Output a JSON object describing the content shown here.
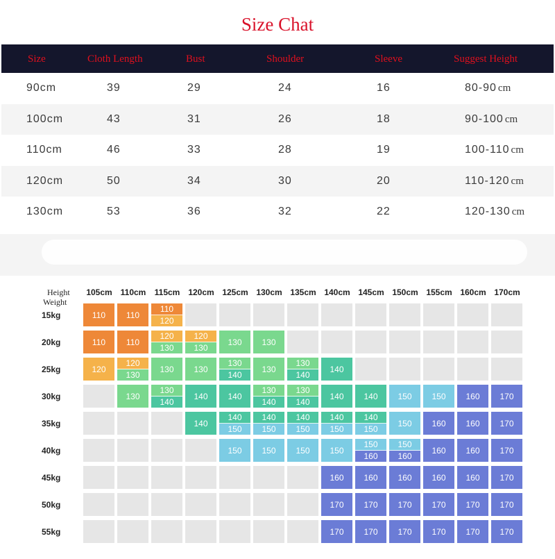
{
  "title": "Size Chat",
  "size_table": {
    "headers": [
      "Size",
      "Cloth Length",
      "Bust",
      "Shoulder",
      "Sleeve",
      "Suggest Height"
    ],
    "unit": "cm",
    "rows": [
      {
        "size": "90cm",
        "length": "39",
        "bust": "29",
        "shoulder": "24",
        "sleeve": "16",
        "height": "80-90"
      },
      {
        "size": "100cm",
        "length": "43",
        "bust": "31",
        "shoulder": "26",
        "sleeve": "18",
        "height": "90-100"
      },
      {
        "size": "110cm",
        "length": "46",
        "bust": "33",
        "shoulder": "28",
        "sleeve": "19",
        "height": "100-110"
      },
      {
        "size": "120cm",
        "length": "50",
        "bust": "34",
        "shoulder": "30",
        "sleeve": "20",
        "height": "110-120"
      },
      {
        "size": "130cm",
        "length": "53",
        "bust": "36",
        "shoulder": "32",
        "sleeve": "22",
        "height": "120-130"
      }
    ]
  },
  "grid": {
    "corner_height": "Height",
    "corner_weight": "Weight",
    "heights": [
      "105cm",
      "110cm",
      "115cm",
      "120cm",
      "125cm",
      "130cm",
      "135cm",
      "140cm",
      "145cm",
      "150cm",
      "155cm",
      "160cm",
      "170cm"
    ],
    "weights": [
      "15kg",
      "20kg",
      "25kg",
      "30kg",
      "35kg",
      "40kg",
      "45kg",
      "50kg",
      "55kg"
    ],
    "colors": {
      "110": "#ee8838",
      "120": "#f5b24a",
      "130": "#7ad88e",
      "140": "#4cc6a0",
      "150": "#7ccce4",
      "160": "#6b7cd6",
      "170": "#6b7cd6",
      "empty": "#e6e6e6"
    },
    "cells": [
      [
        [
          "110"
        ],
        [
          "110"
        ],
        [
          "110",
          "120"
        ],
        [],
        [],
        [],
        [],
        [],
        [],
        [],
        [],
        [],
        []
      ],
      [
        [
          "110"
        ],
        [
          "110"
        ],
        [
          "120",
          "130"
        ],
        [
          "120",
          "130"
        ],
        [
          "130"
        ],
        [
          "130"
        ],
        [],
        [],
        [],
        [],
        [],
        [],
        []
      ],
      [
        [
          "120"
        ],
        [
          "120",
          "130"
        ],
        [
          "130"
        ],
        [
          "130"
        ],
        [
          "130",
          "140"
        ],
        [
          "130"
        ],
        [
          "130",
          "140"
        ],
        [
          "140"
        ],
        [],
        [],
        [],
        [],
        []
      ],
      [
        [],
        [
          "130"
        ],
        [
          "130",
          "140"
        ],
        [
          "140"
        ],
        [
          "140"
        ],
        [
          "130",
          "140"
        ],
        [
          "130",
          "140"
        ],
        [
          "140"
        ],
        [
          "140"
        ],
        [
          "150"
        ],
        [
          "150"
        ],
        [
          "160"
        ],
        [
          "170"
        ]
      ],
      [
        [],
        [],
        [],
        [
          "140"
        ],
        [
          "140",
          "150"
        ],
        [
          "140",
          "150"
        ],
        [
          "140",
          "150"
        ],
        [
          "140",
          "150"
        ],
        [
          "140",
          "150"
        ],
        [
          "150"
        ],
        [
          "160"
        ],
        [
          "160"
        ],
        [
          "170"
        ]
      ],
      [
        [],
        [],
        [],
        [],
        [
          "150"
        ],
        [
          "150"
        ],
        [
          "150"
        ],
        [
          "150"
        ],
        [
          "150",
          "160"
        ],
        [
          "150",
          "160"
        ],
        [
          "160"
        ],
        [
          "160"
        ],
        [
          "170"
        ]
      ],
      [
        [],
        [],
        [],
        [],
        [],
        [],
        [],
        [
          "160"
        ],
        [
          "160"
        ],
        [
          "160"
        ],
        [
          "160"
        ],
        [
          "160"
        ],
        [
          "170"
        ]
      ],
      [
        [],
        [],
        [],
        [],
        [],
        [],
        [],
        [
          "170"
        ],
        [
          "170"
        ],
        [
          "170"
        ],
        [
          "170"
        ],
        [
          "170"
        ],
        [
          "170"
        ]
      ],
      [
        [],
        [],
        [],
        [],
        [],
        [],
        [],
        [
          "170"
        ],
        [
          "170"
        ],
        [
          "170"
        ],
        [
          "170"
        ],
        [
          "170"
        ],
        [
          "170"
        ]
      ]
    ]
  }
}
